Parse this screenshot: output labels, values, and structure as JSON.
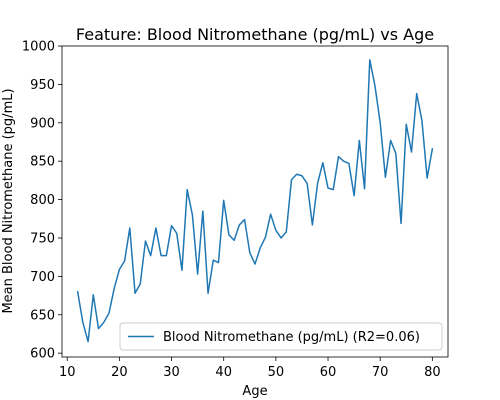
{
  "chart_data": {
    "type": "line",
    "title": "Feature: Blood Nitromethane (pg/mL) vs Age",
    "xlabel": "Age",
    "ylabel": "Mean Blood Nitromethane (pg/mL)",
    "xlim": [
      9,
      83
    ],
    "ylim": [
      595,
      1000
    ],
    "xticks": [
      10,
      20,
      30,
      40,
      50,
      60,
      70,
      80
    ],
    "yticks": [
      600,
      650,
      700,
      750,
      800,
      850,
      900,
      950,
      1000
    ],
    "legend_position": "lower-right",
    "grid": false,
    "series": [
      {
        "name": "Blood Nitromethane (pg/mL) (R2=0.06)",
        "color": "#1f77b4",
        "x": [
          12,
          13,
          14,
          15,
          16,
          17,
          18,
          19,
          20,
          21,
          22,
          23,
          24,
          25,
          26,
          27,
          28,
          29,
          30,
          31,
          32,
          33,
          34,
          35,
          36,
          37,
          38,
          39,
          40,
          41,
          42,
          43,
          44,
          45,
          46,
          47,
          48,
          49,
          50,
          51,
          52,
          53,
          54,
          55,
          56,
          57,
          58,
          59,
          60,
          61,
          62,
          63,
          64,
          65,
          66,
          67,
          68,
          69,
          70,
          71,
          72,
          73,
          74,
          75,
          76,
          77,
          78,
          79,
          80
        ],
        "values": [
          680,
          640,
          615,
          676,
          632,
          640,
          652,
          684,
          709,
          720,
          763,
          678,
          690,
          746,
          727,
          763,
          727,
          727,
          766,
          756,
          708,
          813,
          780,
          703,
          785,
          678,
          721,
          718,
          799,
          754,
          747,
          767,
          774,
          731,
          716,
          737,
          751,
          781,
          760,
          750,
          758,
          826,
          833,
          831,
          821,
          767,
          821,
          848,
          815,
          813,
          856,
          850,
          847,
          805,
          877,
          814,
          982,
          948,
          900,
          829,
          877,
          860,
          769,
          898,
          862,
          938,
          903,
          828,
          866
        ]
      }
    ]
  }
}
